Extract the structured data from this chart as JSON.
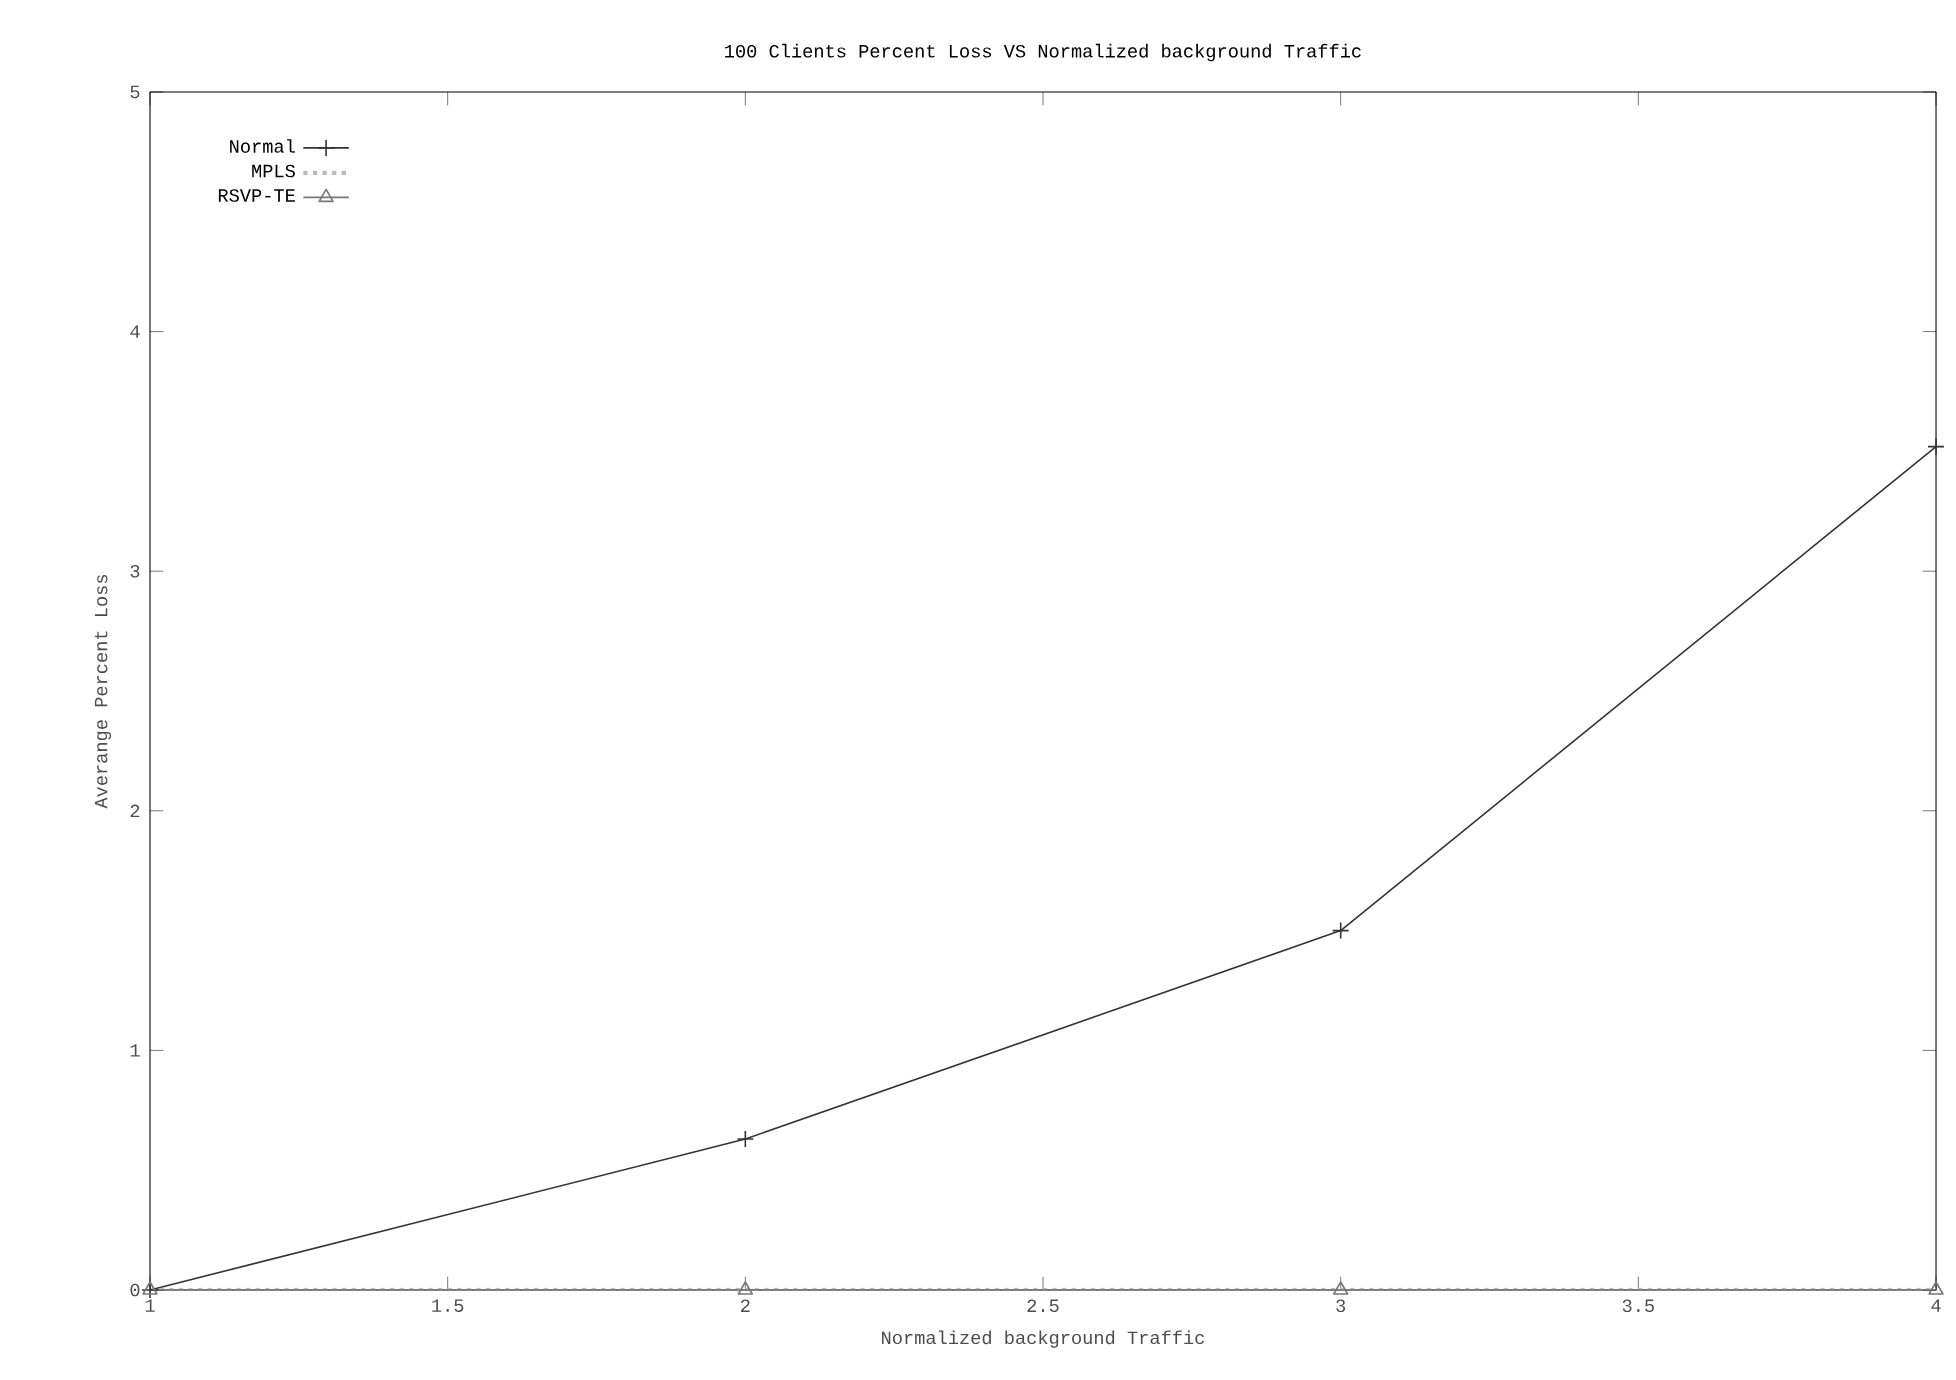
{
  "chart_data": {
    "type": "line",
    "title": "100 Clients Percent Loss VS Normalized background Traffic",
    "xlabel": "Normalized background Traffic",
    "ylabel": "Averange Percent Loss",
    "x": [
      1,
      2,
      3,
      4
    ],
    "series": [
      {
        "name": "Normal",
        "color": "#333333",
        "marker": "cross",
        "line_style": "solid",
        "values": [
          0,
          0.63,
          1.5,
          3.52
        ]
      },
      {
        "name": "MPLS",
        "color": "#bbbbbb",
        "marker": "none",
        "line_style": "dotted",
        "values": [
          0,
          0,
          0,
          0
        ]
      },
      {
        "name": "RSVP-TE",
        "color": "#777777",
        "marker": "triangle",
        "line_style": "solid",
        "values": [
          0,
          0,
          0,
          0
        ]
      }
    ],
    "xlim": [
      1,
      4
    ],
    "xticks": [
      1,
      1.5,
      2,
      2.5,
      3,
      3.5,
      4
    ],
    "ylim": [
      0,
      5
    ],
    "yticks": [
      0,
      1,
      2,
      3,
      4,
      5
    ],
    "grid": false,
    "legend": "top left"
  }
}
